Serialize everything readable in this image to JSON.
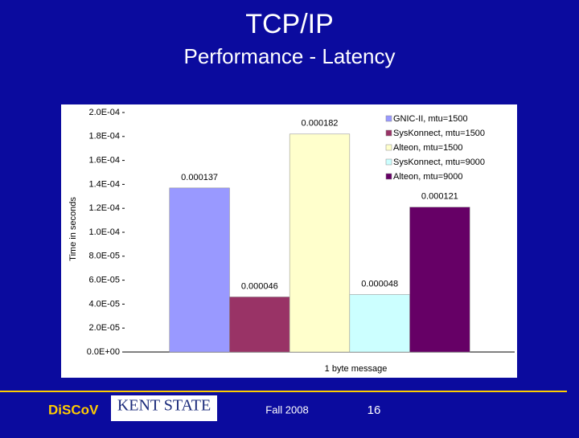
{
  "chart_data": {
    "type": "bar",
    "title": "TCP/IP",
    "subtitle": "Performance - Latency",
    "categories": [
      "1 byte message"
    ],
    "series": [
      {
        "name": "GNIC-II, mtu=1500",
        "color": "#9999ff",
        "values": [
          0.000137
        ]
      },
      {
        "name": "SysKonnect, mtu=1500",
        "color": "#993366",
        "values": [
          4.6e-05
        ]
      },
      {
        "name": "Alteon, mtu=1500",
        "color": "#ffffcc",
        "values": [
          0.000182
        ]
      },
      {
        "name": "SysKonnect, mtu=9000",
        "color": "#ccffff",
        "values": [
          4.8e-05
        ]
      },
      {
        "name": "Alteon, mtu=9000",
        "color": "#660066",
        "values": [
          0.000121
        ]
      }
    ],
    "y_label": "Time in seconds",
    "ylim": [
      0,
      0.0002
    ],
    "yticks": [
      {
        "value": 0,
        "label": "0.0E+00"
      },
      {
        "value": 2e-05,
        "label": "2.0E-05"
      },
      {
        "value": 4e-05,
        "label": "4.0E-05"
      },
      {
        "value": 6e-05,
        "label": "6.0E-05"
      },
      {
        "value": 8e-05,
        "label": "8.0E-05"
      },
      {
        "value": 0.0001,
        "label": "1.0E-04"
      },
      {
        "value": 0.00012,
        "label": "1.2E-04"
      },
      {
        "value": 0.00014,
        "label": "1.4E-04"
      },
      {
        "value": 0.00016,
        "label": "1.6E-04"
      },
      {
        "value": 0.00018,
        "label": "1.8E-04"
      },
      {
        "value": 0.0002,
        "label": "2.0E-04"
      }
    ],
    "legend": "top-right"
  },
  "footer": {
    "brand": "DiSCoV",
    "logo": "KENT STATE",
    "term": "Fall 2008",
    "page": "16"
  }
}
